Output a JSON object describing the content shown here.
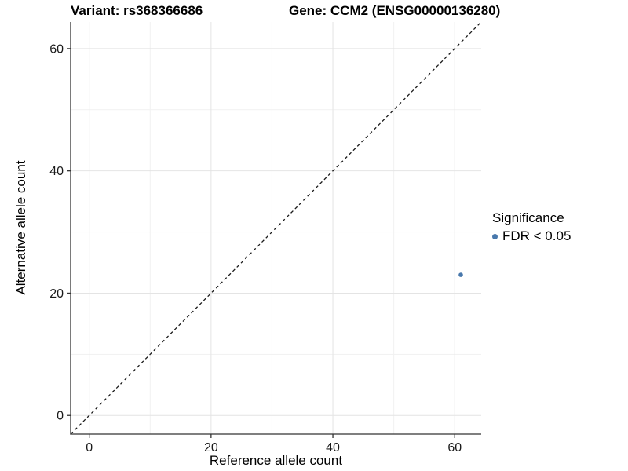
{
  "titles": {
    "left": "Variant: rs368366686",
    "right": "Gene: CCM2 (ENSG00000136280)"
  },
  "chart_data": {
    "type": "scatter",
    "title": "Variant: rs368366686    Gene: CCM2 (ENSG00000136280)",
    "xlabel": "Reference allele count",
    "ylabel": "Alternative allele count",
    "xlim": [
      -3.05,
      64.35
    ],
    "ylim": [
      -3.05,
      64.35
    ],
    "x_ticks": [
      0,
      20,
      40,
      60
    ],
    "y_ticks": [
      0,
      20,
      40,
      60
    ],
    "x_minor_ticks": [
      10,
      30,
      50
    ],
    "y_minor_ticks": [
      10,
      30,
      50
    ],
    "grid": true,
    "identity_line": {
      "equation": "y = x",
      "style": "dashed",
      "color": "#1a1a1a"
    },
    "series": [
      {
        "name": "FDR < 0.05",
        "color": "#4878ac",
        "points": [
          {
            "x": 61,
            "y": 23
          }
        ]
      }
    ],
    "legend": {
      "position": "right",
      "title": "Significance",
      "items": [
        {
          "label": "FDR < 0.05",
          "color": "#4878ac"
        }
      ]
    }
  },
  "style": {
    "major_grid_color": "#e4e4e4",
    "minor_grid_color": "#f1f1f1",
    "axis_line_color": "#333333",
    "tick_color": "#333333",
    "tick_label_color": "#1a1a1a",
    "point_color": "#4878ac"
  }
}
